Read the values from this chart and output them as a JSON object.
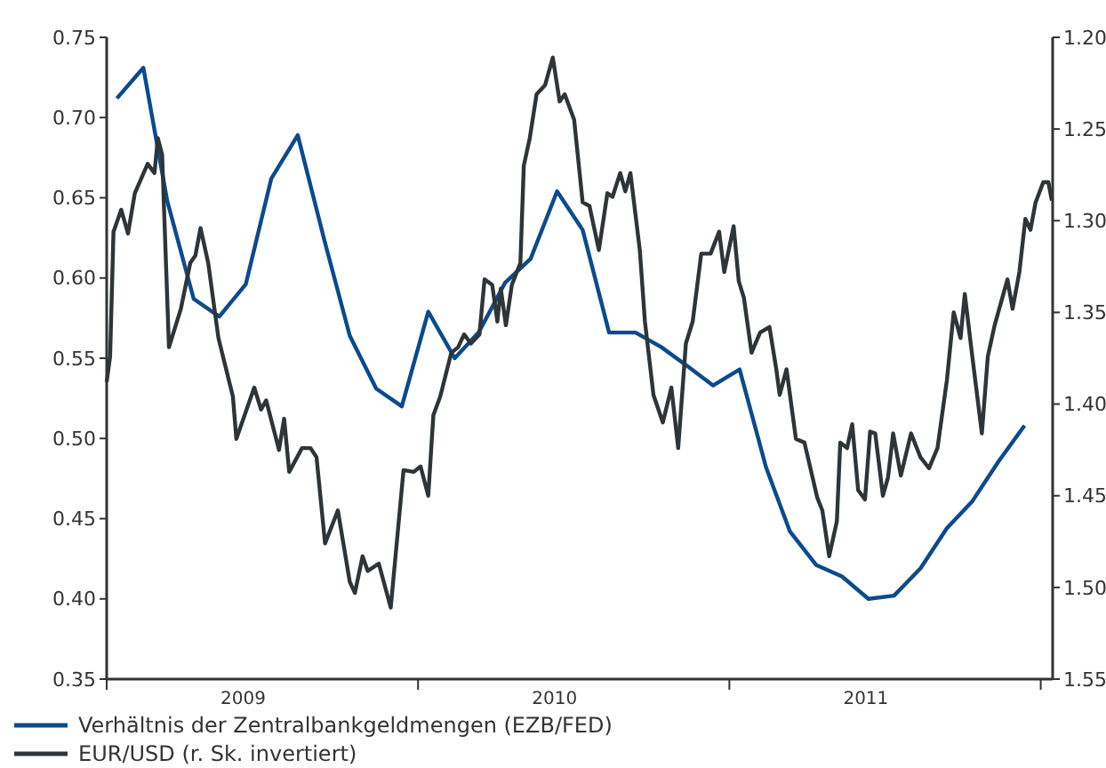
{
  "chart_data": {
    "type": "line",
    "xlim": [
      "2009-01-01",
      "2012-01-15"
    ],
    "xticks": [
      {
        "value": "2009-01-01",
        "label": null
      },
      {
        "value": "2009-06-10",
        "label": "2009"
      },
      {
        "value": "2010-01-01",
        "label": null
      },
      {
        "value": "2010-06-10",
        "label": "2010"
      },
      {
        "value": "2011-01-01",
        "label": null
      },
      {
        "value": "2011-06-10",
        "label": "2011"
      },
      {
        "value": "2012-01-01",
        "label": null
      }
    ],
    "ylim": [
      0.35,
      0.75
    ],
    "yticks": [
      {
        "value": 0.35,
        "label": "0.35"
      },
      {
        "value": 0.4,
        "label": "0.40"
      },
      {
        "value": 0.45,
        "label": "0.45"
      },
      {
        "value": 0.5,
        "label": "0.50"
      },
      {
        "value": 0.55,
        "label": "0.55"
      },
      {
        "value": 0.6,
        "label": "0.60"
      },
      {
        "value": 0.65,
        "label": "0.65"
      },
      {
        "value": 0.7,
        "label": "0.70"
      },
      {
        "value": 0.75,
        "label": "0.75"
      }
    ],
    "y2lim": [
      1.55,
      1.2
    ],
    "y2ticks": [
      {
        "value": 1.2,
        "label": "1.20"
      },
      {
        "value": 1.25,
        "label": "1.25"
      },
      {
        "value": 1.3,
        "label": "1.30"
      },
      {
        "value": 1.35,
        "label": "1.35"
      },
      {
        "value": 1.4,
        "label": "1.40"
      },
      {
        "value": 1.45,
        "label": "1.45"
      },
      {
        "value": 1.5,
        "label": "1.50"
      },
      {
        "value": 1.55,
        "label": "1.55"
      }
    ],
    "grid": false,
    "legend": "bottom left",
    "series": [
      {
        "name": "Verhältnis der Zentralbankgeldmengen (EZB/FED)",
        "color": "#0b4a8f",
        "x": [
          "2009-01-13",
          "2009-02-13",
          "2009-03-13",
          "2009-04-13",
          "2009-05-13",
          "2009-06-13",
          "2009-07-13",
          "2009-08-13",
          "2009-09-13",
          "2009-10-13",
          "2009-11-13",
          "2009-12-13",
          "2010-01-13",
          "2010-02-13",
          "2010-03-13",
          "2010-04-13",
          "2010-05-13",
          "2010-06-13",
          "2010-07-13",
          "2010-08-13",
          "2010-09-13",
          "2010-10-13",
          "2010-11-13",
          "2010-12-13",
          "2011-01-13",
          "2011-02-13",
          "2011-03-13",
          "2011-04-13",
          "2011-05-13",
          "2011-06-13",
          "2011-07-13",
          "2011-08-13",
          "2011-09-13",
          "2011-10-13",
          "2011-11-13",
          "2011-12-13"
        ],
        "values": [
          0.712,
          0.731,
          0.648,
          0.587,
          0.576,
          0.596,
          0.662,
          0.689,
          0.624,
          0.564,
          0.531,
          0.52,
          0.579,
          0.55,
          0.566,
          0.597,
          0.612,
          0.654,
          0.63,
          0.566,
          0.566,
          0.557,
          0.545,
          0.533,
          0.543,
          0.482,
          0.442,
          0.421,
          0.414,
          0.4,
          0.402,
          0.419,
          0.444,
          0.461,
          0.486,
          0.508
        ]
      },
      {
        "name": "EUR/USD (r. Sk. invertiert)",
        "color": "#2e3538",
        "axis": "y2",
        "x": [
          "2009-01-01",
          "2009-01-05",
          "2009-01-09",
          "2009-01-18",
          "2009-01-26",
          "2009-02-03",
          "2009-02-18",
          "2009-02-26",
          "2009-03-02",
          "2009-03-07",
          "2009-03-15",
          "2009-03-29",
          "2009-04-09",
          "2009-04-15",
          "2009-04-21",
          "2009-04-30",
          "2009-05-12",
          "2009-05-29",
          "2009-06-02",
          "2009-06-23",
          "2009-07-01",
          "2009-07-07",
          "2009-07-22",
          "2009-07-28",
          "2009-08-03",
          "2009-08-18",
          "2009-08-28",
          "2009-09-04",
          "2009-09-14",
          "2009-09-29",
          "2009-10-13",
          "2009-10-19",
          "2009-10-28",
          "2009-11-03",
          "2009-11-16",
          "2009-11-30",
          "2009-12-15",
          "2009-12-27",
          "2010-01-04",
          "2010-01-13",
          "2010-01-19",
          "2010-01-27",
          "2010-02-09",
          "2010-02-17",
          "2010-02-24",
          "2010-03-04",
          "2010-03-14",
          "2010-03-20",
          "2010-03-29",
          "2010-04-04",
          "2010-04-08",
          "2010-04-14",
          "2010-04-21",
          "2010-05-01",
          "2010-05-05",
          "2010-05-12",
          "2010-05-20",
          "2010-05-30",
          "2010-06-08",
          "2010-06-16",
          "2010-06-22",
          "2010-07-03",
          "2010-07-13",
          "2010-07-21",
          "2010-08-01",
          "2010-08-11",
          "2010-08-17",
          "2010-08-26",
          "2010-09-01",
          "2010-09-07",
          "2010-09-18",
          "2010-09-24",
          "2010-10-04",
          "2010-10-15",
          "2010-10-25",
          "2010-11-02",
          "2010-11-11",
          "2010-11-19",
          "2010-11-29",
          "2010-12-10",
          "2010-12-20",
          "2010-12-26",
          "2011-01-06",
          "2011-01-12",
          "2011-01-18",
          "2011-01-27",
          "2011-02-06",
          "2011-02-17",
          "2011-02-25",
          "2011-03-01",
          "2011-03-09",
          "2011-03-20",
          "2011-03-30",
          "2011-04-14",
          "2011-04-20",
          "2011-04-28",
          "2011-05-07",
          "2011-05-11",
          "2011-05-19",
          "2011-05-25",
          "2011-06-01",
          "2011-06-09",
          "2011-06-15",
          "2011-06-21",
          "2011-06-30",
          "2011-07-06",
          "2011-07-12",
          "2011-07-21",
          "2011-08-02",
          "2011-08-13",
          "2011-08-23",
          "2011-09-02",
          "2011-09-13",
          "2011-09-21",
          "2011-09-29",
          "2011-10-04",
          "2011-10-12",
          "2011-10-24",
          "2011-10-31",
          "2011-11-08",
          "2011-11-23",
          "2011-11-29",
          "2011-12-07",
          "2011-12-14",
          "2011-12-20",
          "2011-12-26",
          "2012-01-04",
          "2012-01-10",
          "2012-01-14"
        ],
        "values": [
          1.388,
          1.374,
          1.306,
          1.294,
          1.307,
          1.285,
          1.269,
          1.274,
          1.255,
          1.264,
          1.369,
          1.348,
          1.323,
          1.319,
          1.304,
          1.323,
          1.364,
          1.396,
          1.419,
          1.391,
          1.403,
          1.398,
          1.425,
          1.408,
          1.437,
          1.424,
          1.424,
          1.429,
          1.476,
          1.458,
          1.497,
          1.503,
          1.483,
          1.491,
          1.487,
          1.511,
          1.436,
          1.437,
          1.434,
          1.45,
          1.406,
          1.396,
          1.372,
          1.369,
          1.362,
          1.367,
          1.362,
          1.332,
          1.335,
          1.355,
          1.337,
          1.357,
          1.335,
          1.323,
          1.27,
          1.255,
          1.231,
          1.226,
          1.211,
          1.235,
          1.231,
          1.245,
          1.29,
          1.292,
          1.316,
          1.285,
          1.287,
          1.274,
          1.284,
          1.274,
          1.316,
          1.355,
          1.395,
          1.41,
          1.391,
          1.424,
          1.367,
          1.355,
          1.318,
          1.318,
          1.306,
          1.328,
          1.303,
          1.333,
          1.342,
          1.372,
          1.361,
          1.358,
          1.381,
          1.395,
          1.381,
          1.419,
          1.421,
          1.451,
          1.458,
          1.483,
          1.464,
          1.421,
          1.424,
          1.411,
          1.447,
          1.452,
          1.415,
          1.416,
          1.45,
          1.44,
          1.416,
          1.439,
          1.416,
          1.429,
          1.435,
          1.424,
          1.387,
          1.35,
          1.364,
          1.34,
          1.371,
          1.416,
          1.374,
          1.357,
          1.332,
          1.348,
          1.328,
          1.299,
          1.305,
          1.29,
          1.279,
          1.279,
          1.289
        ]
      }
    ]
  }
}
